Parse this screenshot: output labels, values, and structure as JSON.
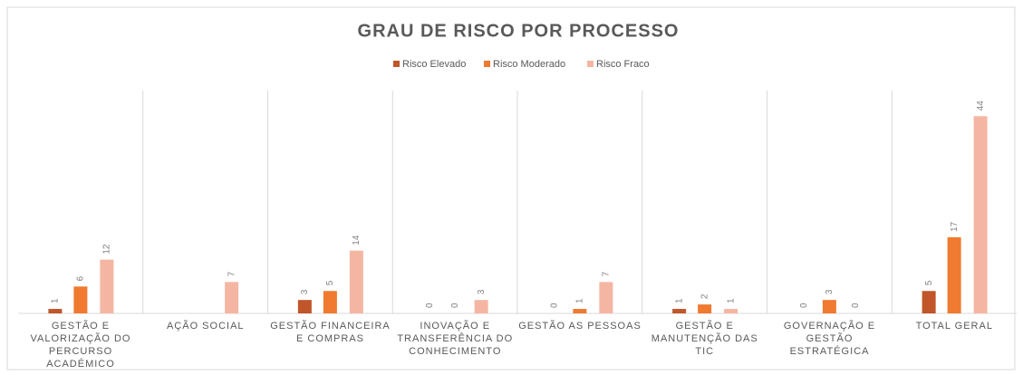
{
  "chart_data": {
    "type": "bar",
    "title": "GRAU DE RISCO POR PROCESSO",
    "categories": [
      "GESTÃO E VALORIZAÇÃO DO PERCURSO ACADÉMICO",
      "AÇÃO SOCIAL",
      "GESTÃO FINANCEIRA E COMPRAS",
      "INOVAÇÃO E TRANSFERÊNCIA DO CONHECIMENTO",
      "GESTÃO AS PESSOAS",
      "GESTÃO E MANUTENÇÃO DAS TIC",
      "GOVERNAÇÃO E GESTÃO ESTRATÉGICA",
      "TOTAL GERAL"
    ],
    "series": [
      {
        "name": "Risco Elevado",
        "color": "#c0562a",
        "values": [
          1,
          null,
          3,
          0,
          0,
          1,
          0,
          5
        ]
      },
      {
        "name": "Risco Moderado",
        "color": "#f07a30",
        "values": [
          6,
          null,
          5,
          0,
          1,
          2,
          3,
          17
        ]
      },
      {
        "name": "Risco Fraco",
        "color": "#f4b6a2",
        "values": [
          12,
          7,
          14,
          3,
          7,
          1,
          0,
          44
        ]
      }
    ],
    "legend": "top"
  }
}
